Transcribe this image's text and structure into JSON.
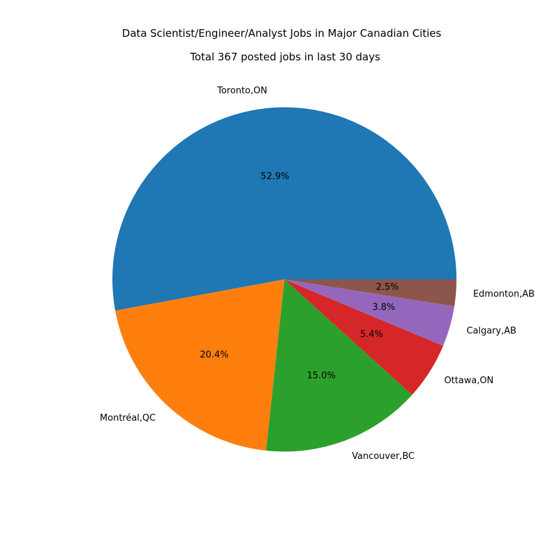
{
  "chart_data": {
    "type": "pie",
    "title": "Data Scientist/Engineer/Analyst Jobs in Major Canadian Cities",
    "subtitle": "Total 367 posted jobs in last 30 days",
    "slices": [
      {
        "label": "Toronto,ON",
        "value": 52.9,
        "pct_label": "52.9%",
        "color": "#1f77b4"
      },
      {
        "label": "Montréal,QC",
        "value": 20.4,
        "pct_label": "20.4%",
        "color": "#ff7f0e"
      },
      {
        "label": "Vancouver,BC",
        "value": 15.0,
        "pct_label": "15.0%",
        "color": "#2ca02c"
      },
      {
        "label": "Ottawa,ON",
        "value": 5.4,
        "pct_label": "5.4%",
        "color": "#d62728"
      },
      {
        "label": "Calgary,AB",
        "value": 3.8,
        "pct_label": "3.8%",
        "color": "#9467bd"
      },
      {
        "label": "Edmonton,AB",
        "value": 2.5,
        "pct_label": "2.5%",
        "color": "#8c564b"
      }
    ]
  }
}
